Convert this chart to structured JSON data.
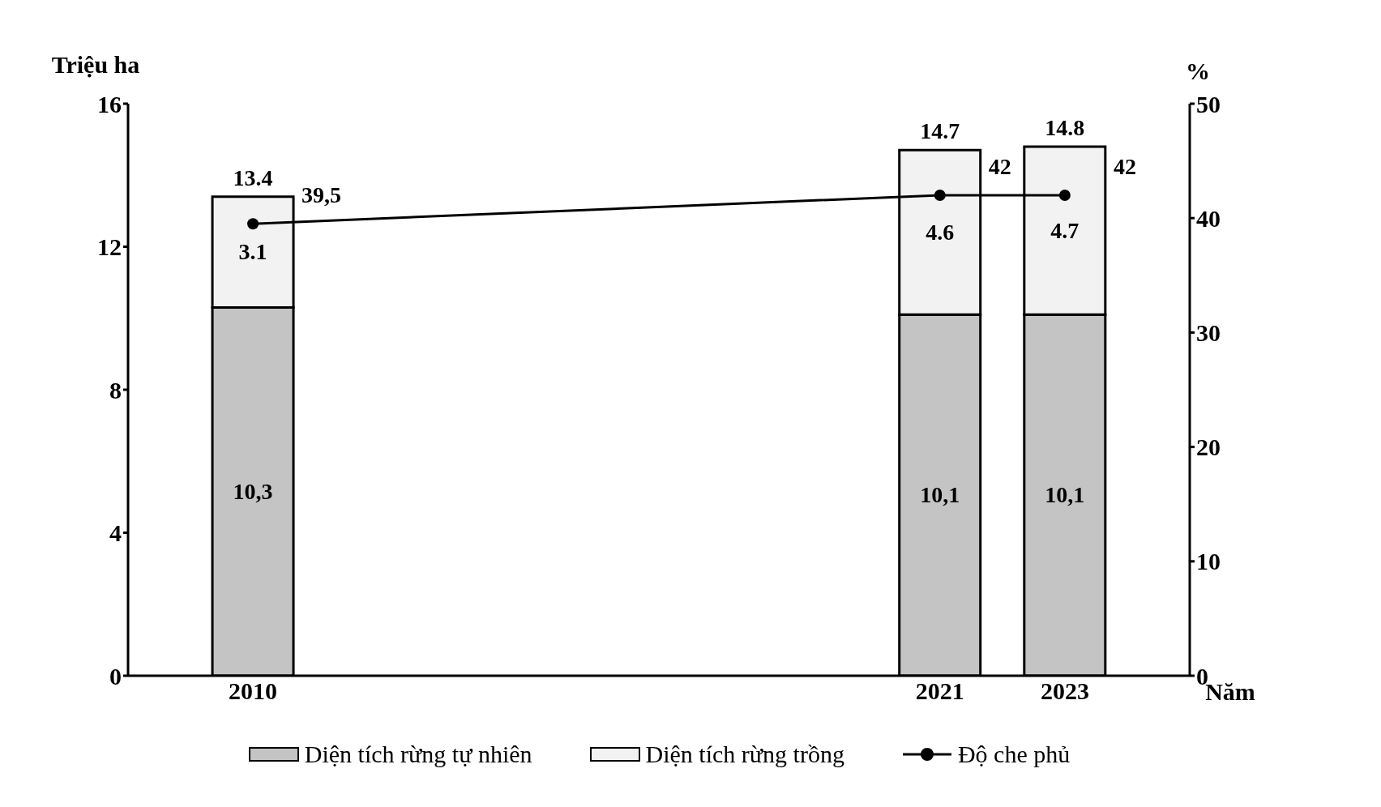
{
  "chart_data": {
    "type": "bar",
    "stacked": true,
    "x": [
      2010,
      2021,
      2023
    ],
    "xlim": [
      2008,
      2025
    ],
    "xticks": [
      2010,
      2021,
      2023
    ],
    "xlabel": "Năm",
    "ylabel": "Triệu ha",
    "y2label": "%",
    "ylim": [
      0,
      16
    ],
    "yticks": [
      0,
      4,
      8,
      12,
      16
    ],
    "y2lim": [
      0,
      50
    ],
    "y2ticks": [
      0,
      10,
      20,
      30,
      40,
      50
    ],
    "series": [
      {
        "name": "Diện tích rừng tự nhiên",
        "color": "#c4c4c4",
        "values": [
          10.3,
          10.1,
          10.1
        ],
        "value_labels": [
          "10,3",
          "10,1",
          "10,1"
        ]
      },
      {
        "name": "Diện tích rừng trồng",
        "color": "#f2f2f2",
        "values": [
          3.1,
          4.6,
          4.7
        ],
        "value_labels": [
          "3.1",
          "4.6",
          "4.7"
        ]
      },
      {
        "name": "Độ che phủ",
        "type": "line",
        "axis": "y2",
        "color": "#000000",
        "values": [
          39.5,
          42,
          42
        ],
        "value_labels": [
          "39,5",
          "42",
          "42"
        ],
        "marker": "circle"
      }
    ],
    "totals": [
      "13.4",
      "14.7",
      "14.8"
    ],
    "grid": false,
    "legend": "bottom"
  }
}
